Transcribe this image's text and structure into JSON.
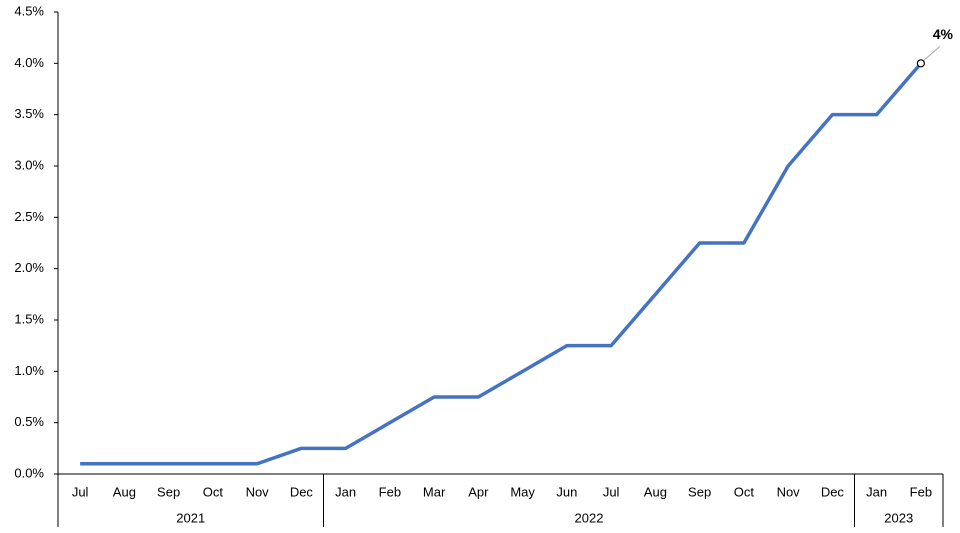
{
  "chart_data": {
    "type": "line",
    "categories": [
      "Jul",
      "Aug",
      "Sep",
      "Oct",
      "Nov",
      "Dec",
      "Jan",
      "Feb",
      "Mar",
      "Apr",
      "May",
      "Jun",
      "Jul",
      "Aug",
      "Sep",
      "Oct",
      "Nov",
      "Dec",
      "Jan",
      "Feb"
    ],
    "year_groups": [
      {
        "name": "2021",
        "months": 6
      },
      {
        "name": "2022",
        "months": 12
      },
      {
        "name": "2023",
        "months": 2
      }
    ],
    "series": [
      {
        "color": "#4472c4",
        "values": [
          0.1,
          0.1,
          0.1,
          0.1,
          0.1,
          0.25,
          0.25,
          0.5,
          0.75,
          0.75,
          1.0,
          1.25,
          1.25,
          1.75,
          2.25,
          2.25,
          3.0,
          3.5,
          3.5,
          4.0
        ],
        "value_labels": [
          null,
          null,
          null,
          null,
          null,
          null,
          null,
          null,
          null,
          null,
          null,
          null,
          null,
          null,
          null,
          null,
          null,
          null,
          null,
          "4%"
        ]
      }
    ],
    "ylim": [
      0,
      4.5
    ],
    "yticks": [
      {
        "value": 0,
        "label": "0.0%"
      },
      {
        "value": 0.5,
        "label": "0.5%"
      },
      {
        "value": 1,
        "label": "1.0%"
      },
      {
        "value": 1.5,
        "label": "1.5%"
      },
      {
        "value": 2,
        "label": "2.0%"
      },
      {
        "value": 2.5,
        "label": "2.5%"
      },
      {
        "value": 3,
        "label": "3.0%"
      },
      {
        "value": 3.5,
        "label": "3.5%"
      },
      {
        "value": 4,
        "label": "4.0%"
      },
      {
        "value": 4.5,
        "label": "4.5%"
      }
    ],
    "grid": false
  }
}
